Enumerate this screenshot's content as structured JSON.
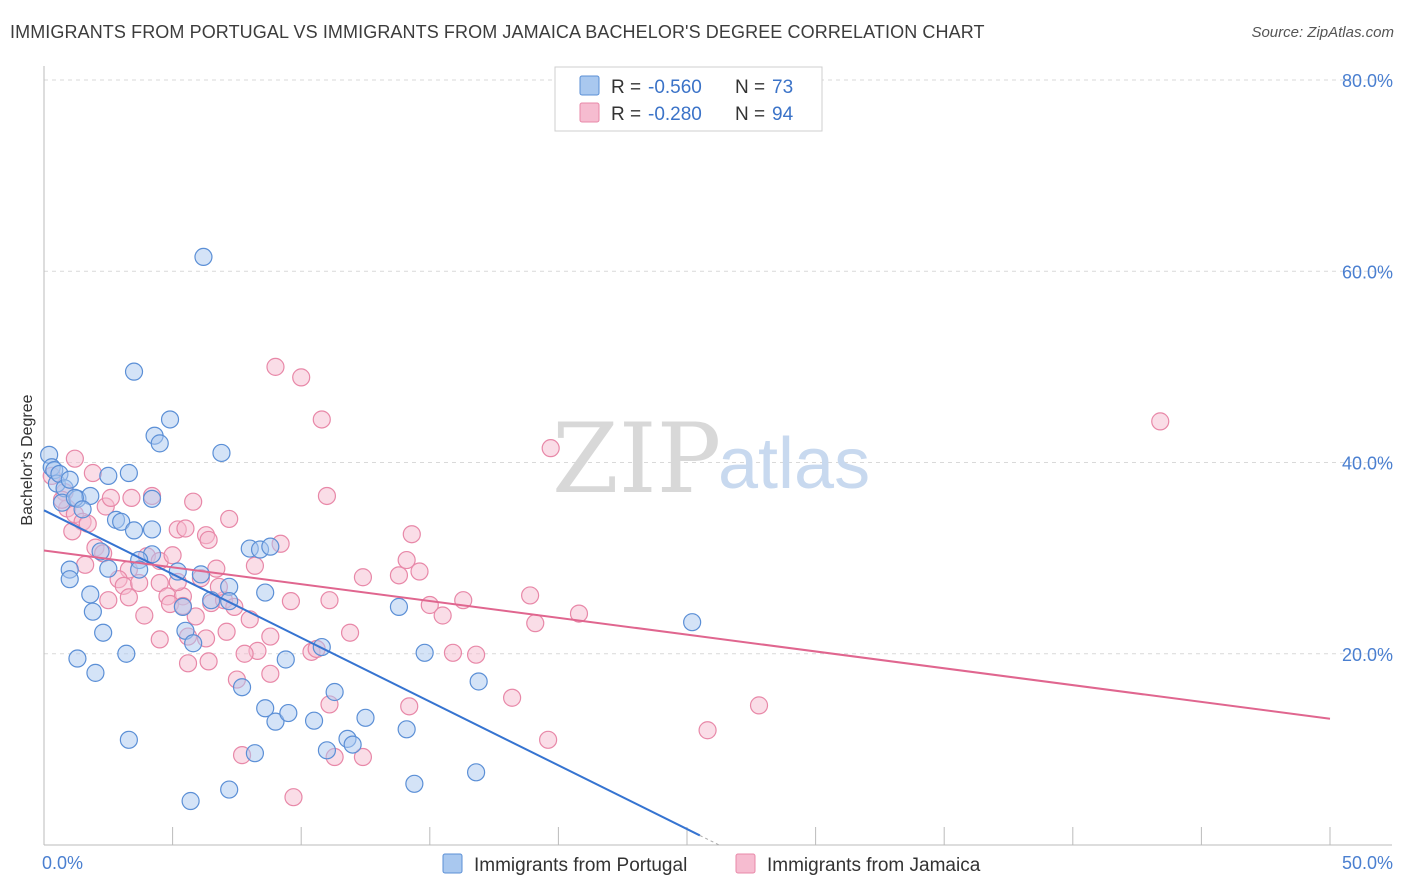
{
  "title": "IMMIGRANTS FROM PORTUGAL VS IMMIGRANTS FROM JAMAICA BACHELOR'S DEGREE CORRELATION CHART",
  "source": "Source: ZipAtlas.com",
  "watermark": {
    "zip": "ZIP",
    "atlas": "atlas"
  },
  "legend": {
    "rows": [
      {
        "r_label": "R = ",
        "r_value": "-0.560",
        "n_label": "N = ",
        "n_value": "73"
      },
      {
        "r_label": "R = ",
        "r_value": "-0.280",
        "n_label": "N = ",
        "n_value": "94"
      }
    ]
  },
  "colors": {
    "portugal_fill": "#a9c8ef",
    "portugal_stroke": "#5b8fd6",
    "portugal_line": "#3674d1",
    "jamaica_fill": "#f6bcd0",
    "jamaica_stroke": "#e888a8",
    "jamaica_line": "#e0668f",
    "grid": "#d9d9d9",
    "axis_text": "#4a7fd0"
  },
  "chart_data": {
    "type": "scatter",
    "title": "IMMIGRANTS FROM PORTUGAL VS IMMIGRANTS FROM JAMAICA BACHELOR'S DEGREE CORRELATION CHART",
    "xlabel": "",
    "ylabel": "Bachelor's Degree",
    "xlim": [
      0,
      50
    ],
    "ylim": [
      0,
      80
    ],
    "x_tick_labels": [
      "0.0%",
      "50.0%"
    ],
    "y_ticks": [
      20,
      40,
      60,
      80
    ],
    "y_tick_labels": [
      "20.0%",
      "40.0%",
      "60.0%",
      "80.0%"
    ],
    "grid": true,
    "legend_position": "top-center",
    "series": [
      {
        "name": "Immigrants from Portugal",
        "trend": {
          "x": [
            0,
            25.5
          ],
          "y": [
            35.0,
            1.0
          ],
          "dashed_extension_to_x": 26.3
        },
        "points": [
          [
            0.2,
            40.8
          ],
          [
            0.3,
            39.5
          ],
          [
            0.4,
            39.2
          ],
          [
            0.5,
            37.8
          ],
          [
            0.6,
            38.8
          ],
          [
            0.8,
            37.3
          ],
          [
            0.7,
            35.8
          ],
          [
            1.0,
            38.2
          ],
          [
            1.3,
            36.2
          ],
          [
            1.8,
            36.5
          ],
          [
            1.2,
            36.3
          ],
          [
            1.5,
            35.1
          ],
          [
            2.5,
            38.6
          ],
          [
            3.3,
            38.9
          ],
          [
            2.8,
            34.0
          ],
          [
            3.0,
            33.8
          ],
          [
            1.0,
            28.8
          ],
          [
            1.0,
            27.8
          ],
          [
            2.2,
            30.7
          ],
          [
            3.5,
            32.9
          ],
          [
            4.2,
            33.0
          ],
          [
            4.2,
            30.4
          ],
          [
            3.7,
            29.8
          ],
          [
            2.5,
            28.9
          ],
          [
            3.7,
            28.8
          ],
          [
            5.2,
            28.6
          ],
          [
            6.1,
            28.3
          ],
          [
            5.4,
            24.9
          ],
          [
            6.5,
            25.6
          ],
          [
            7.2,
            27.0
          ],
          [
            7.2,
            25.5
          ],
          [
            1.8,
            26.2
          ],
          [
            1.9,
            24.4
          ],
          [
            2.3,
            22.2
          ],
          [
            3.2,
            20.0
          ],
          [
            1.3,
            19.5
          ],
          [
            2.0,
            18.0
          ],
          [
            5.5,
            22.4
          ],
          [
            5.8,
            21.1
          ],
          [
            4.3,
            42.8
          ],
          [
            4.5,
            42.0
          ],
          [
            4.9,
            44.5
          ],
          [
            3.5,
            49.5
          ],
          [
            4.2,
            36.2
          ],
          [
            6.9,
            41.0
          ],
          [
            6.2,
            61.5
          ],
          [
            8.0,
            31.0
          ],
          [
            8.4,
            30.9
          ],
          [
            8.8,
            31.2
          ],
          [
            8.6,
            26.4
          ],
          [
            9.4,
            19.4
          ],
          [
            10.8,
            20.7
          ],
          [
            7.7,
            16.5
          ],
          [
            8.6,
            14.3
          ],
          [
            9.0,
            12.9
          ],
          [
            9.5,
            13.8
          ],
          [
            10.5,
            13.0
          ],
          [
            11.3,
            16.0
          ],
          [
            11.8,
            11.1
          ],
          [
            12.5,
            13.3
          ],
          [
            11.0,
            9.9
          ],
          [
            12.0,
            10.5
          ],
          [
            13.8,
            24.9
          ],
          [
            14.1,
            12.1
          ],
          [
            14.8,
            20.1
          ],
          [
            16.9,
            17.1
          ],
          [
            16.8,
            7.6
          ],
          [
            14.4,
            6.4
          ],
          [
            8.2,
            9.6
          ],
          [
            3.3,
            11.0
          ],
          [
            7.2,
            5.8
          ],
          [
            5.7,
            4.6
          ],
          [
            25.2,
            23.3
          ]
        ]
      },
      {
        "name": "Immigrants from Jamaica",
        "trend": {
          "x": [
            0,
            50
          ],
          "y": [
            30.8,
            13.2
          ]
        },
        "points": [
          [
            0.3,
            38.6
          ],
          [
            0.8,
            36.9
          ],
          [
            0.9,
            35.2
          ],
          [
            1.2,
            34.6
          ],
          [
            1.5,
            33.8
          ],
          [
            1.7,
            33.6
          ],
          [
            0.7,
            36.1
          ],
          [
            1.1,
            32.8
          ],
          [
            1.2,
            40.4
          ],
          [
            1.9,
            38.9
          ],
          [
            2.4,
            35.4
          ],
          [
            2.6,
            36.3
          ],
          [
            3.4,
            36.3
          ],
          [
            4.2,
            36.5
          ],
          [
            5.2,
            33.0
          ],
          [
            5.8,
            35.9
          ],
          [
            6.3,
            32.4
          ],
          [
            7.2,
            34.1
          ],
          [
            2.0,
            31.1
          ],
          [
            2.3,
            30.5
          ],
          [
            3.3,
            28.8
          ],
          [
            4.0,
            30.2
          ],
          [
            4.5,
            29.7
          ],
          [
            5.0,
            30.3
          ],
          [
            5.5,
            33.1
          ],
          [
            6.4,
            31.9
          ],
          [
            6.7,
            28.9
          ],
          [
            1.6,
            29.3
          ],
          [
            2.9,
            27.8
          ],
          [
            3.1,
            27.1
          ],
          [
            3.3,
            25.9
          ],
          [
            3.7,
            27.4
          ],
          [
            4.5,
            27.4
          ],
          [
            4.8,
            26.0
          ],
          [
            5.4,
            26.0
          ],
          [
            6.1,
            27.9
          ],
          [
            6.5,
            25.3
          ],
          [
            7.0,
            25.6
          ],
          [
            7.4,
            24.9
          ],
          [
            4.9,
            25.2
          ],
          [
            5.2,
            27.5
          ],
          [
            8.2,
            29.2
          ],
          [
            9.2,
            31.5
          ],
          [
            8.8,
            21.8
          ],
          [
            8.3,
            20.3
          ],
          [
            7.8,
            20.0
          ],
          [
            7.1,
            22.3
          ],
          [
            6.3,
            21.6
          ],
          [
            5.6,
            21.8
          ],
          [
            4.5,
            21.5
          ],
          [
            5.4,
            25.0
          ],
          [
            6.4,
            19.2
          ],
          [
            5.6,
            19.0
          ],
          [
            7.5,
            17.3
          ],
          [
            8.8,
            17.9
          ],
          [
            10.4,
            20.2
          ],
          [
            9.6,
            25.5
          ],
          [
            11.1,
            25.6
          ],
          [
            11.9,
            22.2
          ],
          [
            12.4,
            28.0
          ],
          [
            13.8,
            28.2
          ],
          [
            14.1,
            29.8
          ],
          [
            14.3,
            32.5
          ],
          [
            14.6,
            28.6
          ],
          [
            15.0,
            25.1
          ],
          [
            15.5,
            24.0
          ],
          [
            15.9,
            20.1
          ],
          [
            16.8,
            19.9
          ],
          [
            16.3,
            25.6
          ],
          [
            18.9,
            26.1
          ],
          [
            19.1,
            23.2
          ],
          [
            20.8,
            24.2
          ],
          [
            9.0,
            50.0
          ],
          [
            10.0,
            48.9
          ],
          [
            10.8,
            44.5
          ],
          [
            11.0,
            36.5
          ],
          [
            19.7,
            41.5
          ],
          [
            14.2,
            14.5
          ],
          [
            18.2,
            15.4
          ],
          [
            19.6,
            11.0
          ],
          [
            25.8,
            12.0
          ],
          [
            27.8,
            14.6
          ],
          [
            12.4,
            9.2
          ],
          [
            11.3,
            9.2
          ],
          [
            7.7,
            9.4
          ],
          [
            9.7,
            5.0
          ],
          [
            11.1,
            14.7
          ],
          [
            43.4,
            44.3
          ],
          [
            10.6,
            20.5
          ],
          [
            8.0,
            23.6
          ],
          [
            5.9,
            23.9
          ],
          [
            2.5,
            25.6
          ],
          [
            3.9,
            24.0
          ],
          [
            6.8,
            27.0
          ]
        ]
      }
    ]
  },
  "bottom_legend": [
    {
      "label": "Immigrants from Portugal"
    },
    {
      "label": "Immigrants from Jamaica"
    }
  ]
}
